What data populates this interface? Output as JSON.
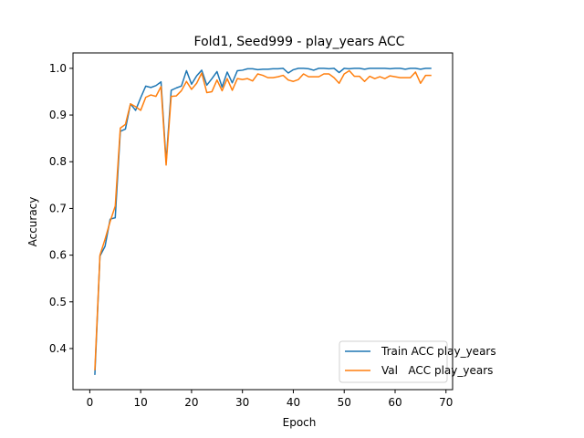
{
  "chart_data": {
    "type": "line",
    "title": "Fold1, Seed999 - play_years ACC",
    "xlabel": "Epoch",
    "ylabel": "Accuracy",
    "xlim": [
      -3.3,
      71.3
    ],
    "ylim": [
      0.312,
      1.033
    ],
    "xticks": [
      0,
      10,
      20,
      30,
      40,
      50,
      60,
      70
    ],
    "yticks": [
      0.4,
      0.5,
      0.6,
      0.7,
      0.8,
      0.9,
      1.0
    ],
    "ytick_labels": [
      "0.4",
      "0.5",
      "0.6",
      "0.7",
      "0.8",
      "0.9",
      "1.0"
    ],
    "grid": false,
    "legend_position": "lower-right",
    "x": [
      1,
      2,
      3,
      4,
      5,
      6,
      7,
      8,
      9,
      10,
      11,
      12,
      13,
      14,
      15,
      16,
      17,
      18,
      19,
      20,
      21,
      22,
      23,
      24,
      25,
      26,
      27,
      28,
      29,
      30,
      31,
      32,
      33,
      34,
      35,
      36,
      37,
      38,
      39,
      40,
      41,
      42,
      43,
      44,
      45,
      46,
      47,
      48,
      49,
      50,
      51,
      52,
      53,
      54,
      55,
      56,
      57,
      58,
      59,
      60,
      61,
      62,
      63,
      64,
      65,
      66,
      67
    ],
    "series": [
      {
        "name": "Train ACC play_years",
        "color": "#1f77b4",
        "values": [
          0.345,
          0.598,
          0.619,
          0.677,
          0.68,
          0.865,
          0.87,
          0.924,
          0.91,
          0.937,
          0.962,
          0.959,
          0.963,
          0.971,
          0.8,
          0.953,
          0.958,
          0.962,
          0.995,
          0.966,
          0.984,
          0.996,
          0.964,
          0.978,
          0.993,
          0.96,
          0.992,
          0.969,
          0.995,
          0.996,
          0.999,
          0.999,
          0.997,
          0.998,
          0.998,
          0.999,
          0.999,
          1.0,
          0.99,
          0.997,
          1.0,
          1.0,
          0.999,
          0.996,
          1.0,
          1.0,
          0.999,
          1.0,
          0.991,
          1.0,
          0.999,
          1.0,
          1.0,
          0.998,
          1.0,
          1.0,
          1.0,
          1.0,
          0.999,
          1.0,
          1.0,
          0.998,
          1.0,
          1.0,
          0.998,
          1.0,
          1.0
        ]
      },
      {
        "name": "Val   ACC play_years",
        "color": "#ff7f0e",
        "values": [
          0.355,
          0.6,
          0.634,
          0.672,
          0.705,
          0.872,
          0.88,
          0.924,
          0.918,
          0.91,
          0.938,
          0.943,
          0.94,
          0.961,
          0.793,
          0.94,
          0.941,
          0.952,
          0.972,
          0.955,
          0.968,
          0.99,
          0.948,
          0.95,
          0.975,
          0.952,
          0.978,
          0.953,
          0.978,
          0.976,
          0.978,
          0.973,
          0.988,
          0.985,
          0.98,
          0.98,
          0.982,
          0.985,
          0.975,
          0.972,
          0.976,
          0.988,
          0.982,
          0.982,
          0.982,
          0.988,
          0.988,
          0.98,
          0.968,
          0.988,
          0.995,
          0.983,
          0.983,
          0.972,
          0.983,
          0.978,
          0.982,
          0.978,
          0.984,
          0.982,
          0.98,
          0.98,
          0.98,
          0.992,
          0.968,
          0.985,
          0.985
        ]
      }
    ]
  }
}
